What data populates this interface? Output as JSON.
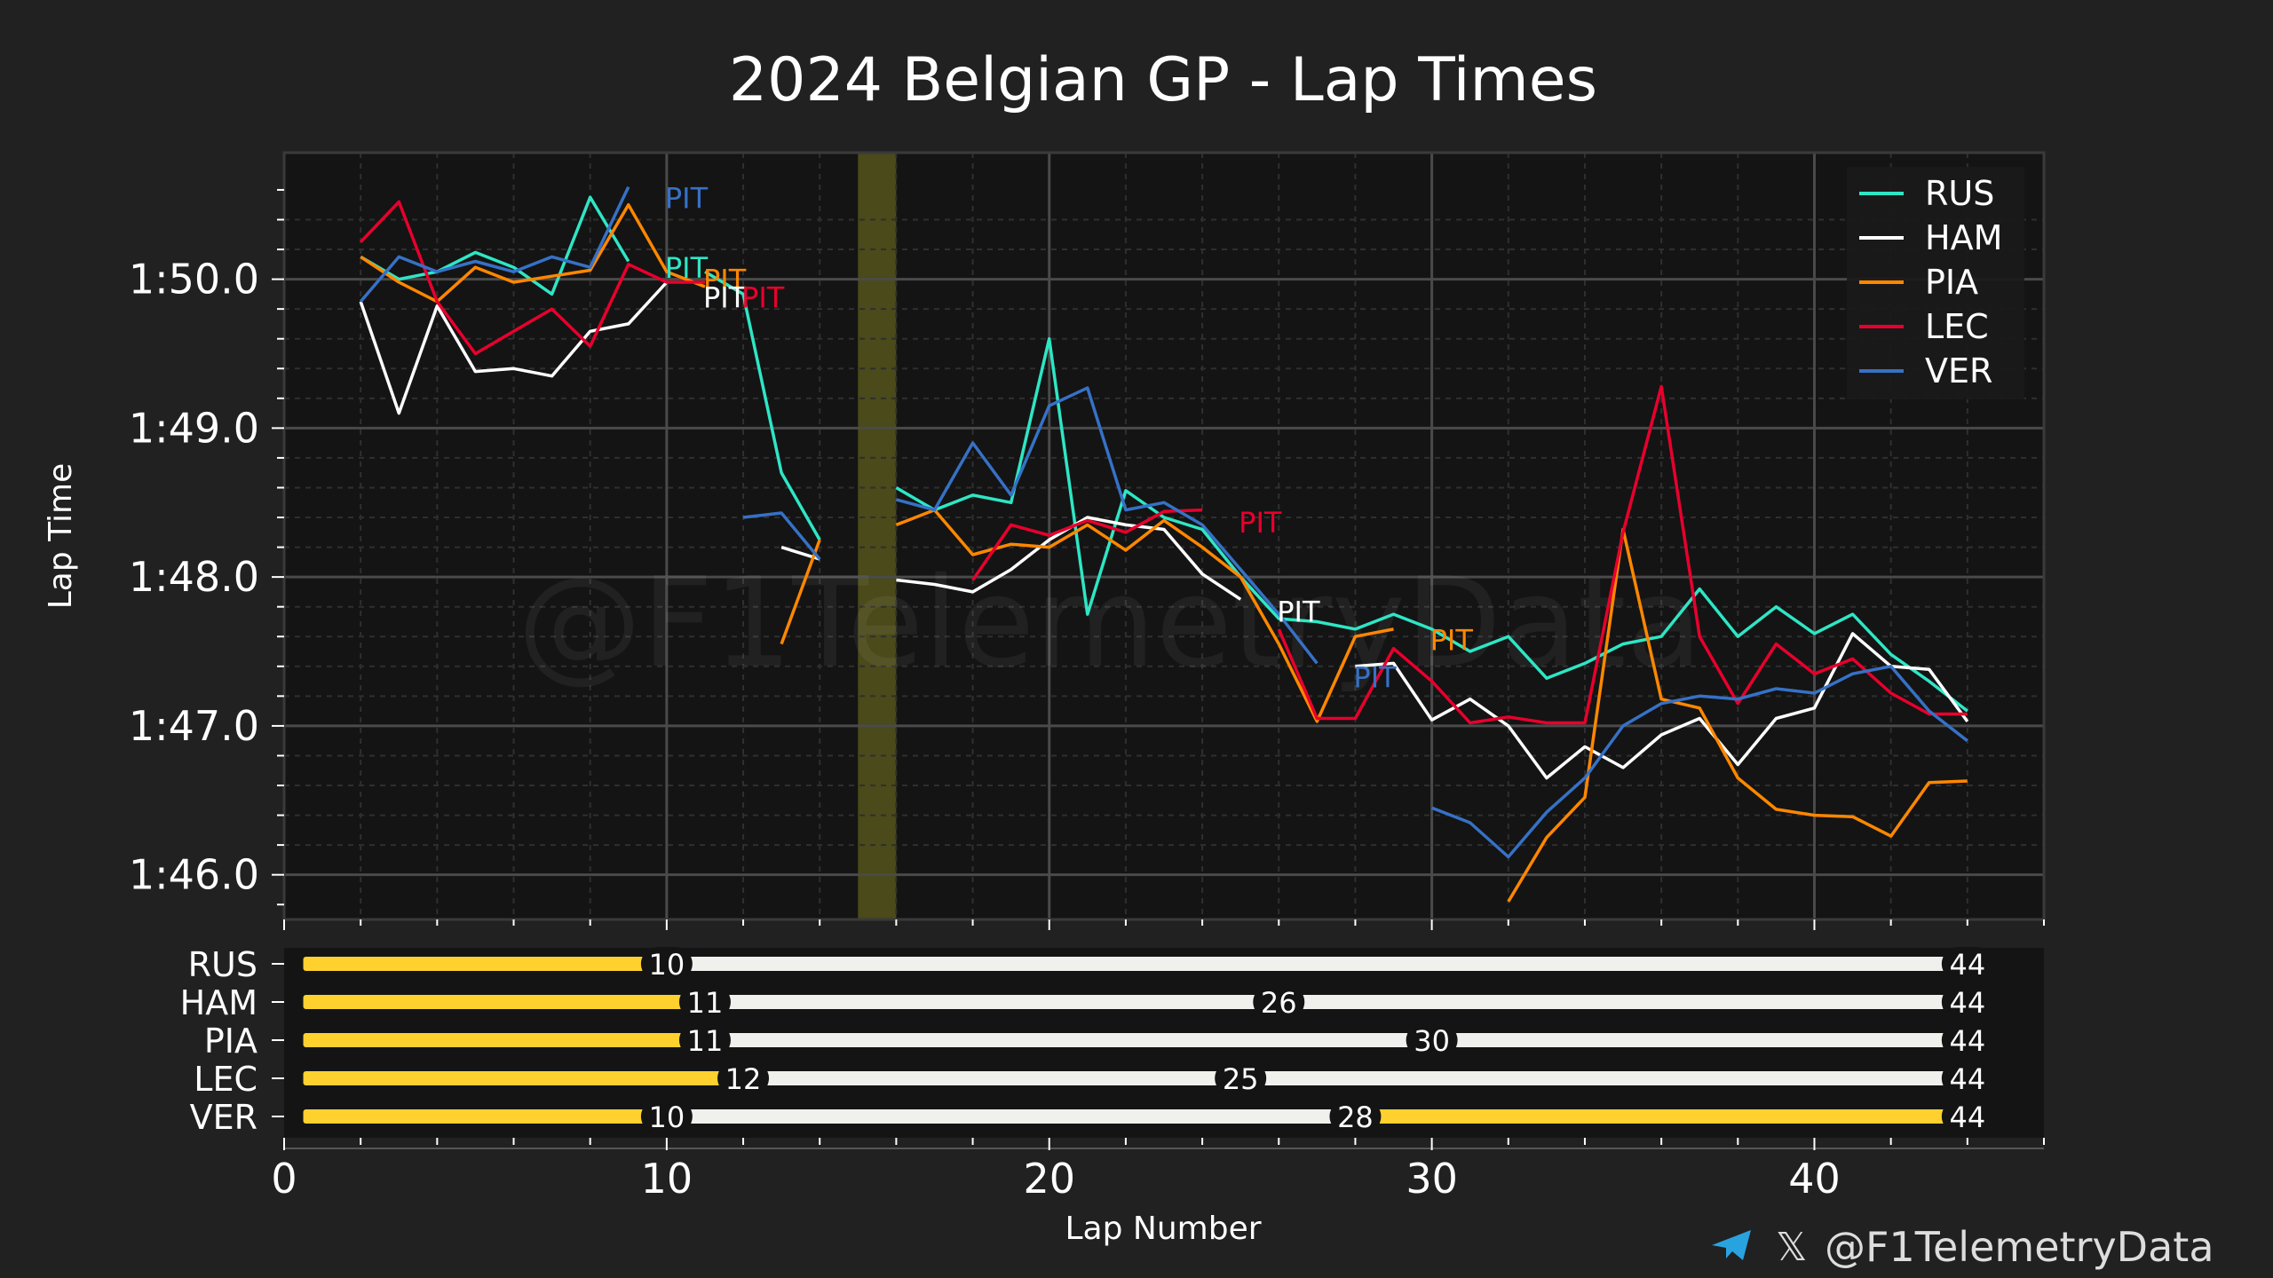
{
  "chart_data": {
    "type": "line",
    "title": "2024 Belgian GP - Lap Times",
    "xlabel": "Lap Number",
    "ylabel": "Lap Time",
    "xlim": [
      0,
      46
    ],
    "ylim_seconds": [
      105.7,
      110.85
    ],
    "x_ticks": [
      0,
      10,
      20,
      30,
      40
    ],
    "y_ticks": [
      {
        "value": 106,
        "label": "1:46.0"
      },
      {
        "value": 107,
        "label": "1:47.0"
      },
      {
        "value": 108,
        "label": "1:48.0"
      },
      {
        "value": 109,
        "label": "1:49.0"
      },
      {
        "value": 110,
        "label": "1:50.0"
      }
    ],
    "safety_car_laps": [
      15,
      16
    ],
    "grid": true,
    "legend_position": "top-right",
    "series": [
      {
        "name": "RUS",
        "color": "#2ee6c5",
        "points": [
          [
            2,
            110.15
          ],
          [
            3,
            110.0
          ],
          [
            4,
            110.05
          ],
          [
            5,
            110.18
          ],
          [
            6,
            110.08
          ],
          [
            7,
            109.9
          ],
          [
            8,
            110.55
          ],
          [
            9,
            110.12
          ],
          [
            null,
            null
          ],
          [
            11,
            110.05
          ],
          [
            12,
            109.9
          ],
          [
            13,
            108.7
          ],
          [
            14,
            108.25
          ],
          [
            null,
            null
          ],
          [
            16,
            108.6
          ],
          [
            17,
            108.45
          ],
          [
            18,
            108.55
          ],
          [
            19,
            108.5
          ],
          [
            20,
            109.6
          ],
          [
            21,
            107.75
          ],
          [
            22,
            108.58
          ],
          [
            23,
            108.4
          ],
          [
            24,
            108.32
          ],
          [
            25,
            108.0
          ],
          [
            26,
            107.72
          ],
          [
            27,
            107.7
          ],
          [
            28,
            107.65
          ],
          [
            29,
            107.75
          ],
          [
            30,
            107.65
          ],
          [
            31,
            107.5
          ],
          [
            32,
            107.6
          ],
          [
            33,
            107.32
          ],
          [
            34,
            107.42
          ],
          [
            35,
            107.55
          ],
          [
            36,
            107.6
          ],
          [
            37,
            107.92
          ],
          [
            38,
            107.6
          ],
          [
            39,
            107.8
          ],
          [
            40,
            107.62
          ],
          [
            41,
            107.75
          ],
          [
            42,
            107.48
          ],
          [
            43,
            107.3
          ],
          [
            44,
            107.1
          ]
        ]
      },
      {
        "name": "HAM",
        "color": "#ffffff",
        "points": [
          [
            2,
            109.85
          ],
          [
            3,
            109.1
          ],
          [
            4,
            109.82
          ],
          [
            5,
            109.38
          ],
          [
            6,
            109.4
          ],
          [
            7,
            109.35
          ],
          [
            8,
            109.65
          ],
          [
            9,
            109.7
          ],
          [
            10,
            109.98
          ],
          [
            null,
            null
          ],
          [
            13,
            108.2
          ],
          [
            14,
            108.12
          ],
          [
            null,
            null
          ],
          [
            16,
            107.98
          ],
          [
            17,
            107.95
          ],
          [
            18,
            107.9
          ],
          [
            19,
            108.05
          ],
          [
            20,
            108.25
          ],
          [
            21,
            108.4
          ],
          [
            22,
            108.35
          ],
          [
            23,
            108.32
          ],
          [
            24,
            108.02
          ],
          [
            25,
            107.85
          ],
          [
            null,
            null
          ],
          [
            28,
            107.4
          ],
          [
            29,
            107.42
          ],
          [
            30,
            107.04
          ],
          [
            31,
            107.18
          ],
          [
            32,
            107.0
          ],
          [
            33,
            106.65
          ],
          [
            34,
            106.86
          ],
          [
            35,
            106.72
          ],
          [
            36,
            106.94
          ],
          [
            37,
            107.05
          ],
          [
            38,
            106.74
          ],
          [
            39,
            107.05
          ],
          [
            40,
            107.12
          ],
          [
            41,
            107.62
          ],
          [
            42,
            107.4
          ],
          [
            43,
            107.38
          ],
          [
            44,
            107.03
          ]
        ]
      },
      {
        "name": "PIA",
        "color": "#ff8700",
        "points": [
          [
            2,
            110.15
          ],
          [
            3,
            109.98
          ],
          [
            4,
            109.85
          ],
          [
            5,
            110.08
          ],
          [
            6,
            109.98
          ],
          [
            7,
            110.02
          ],
          [
            8,
            110.06
          ],
          [
            9,
            110.5
          ],
          [
            10,
            110.05
          ],
          [
            11,
            109.95
          ],
          [
            null,
            null
          ],
          [
            13,
            107.55
          ],
          [
            14,
            108.25
          ],
          [
            null,
            null
          ],
          [
            16,
            108.35
          ],
          [
            17,
            108.45
          ],
          [
            18,
            108.15
          ],
          [
            19,
            108.22
          ],
          [
            20,
            108.2
          ],
          [
            21,
            108.35
          ],
          [
            22,
            108.18
          ],
          [
            23,
            108.38
          ],
          [
            24,
            108.2
          ],
          [
            25,
            108.0
          ],
          [
            26,
            107.55
          ],
          [
            27,
            107.03
          ],
          [
            28,
            107.6
          ],
          [
            29,
            107.65
          ],
          [
            null,
            null
          ],
          [
            32,
            105.82
          ],
          [
            33,
            106.25
          ],
          [
            34,
            106.52
          ],
          [
            35,
            108.32
          ],
          [
            36,
            107.18
          ],
          [
            37,
            107.12
          ],
          [
            38,
            106.65
          ],
          [
            39,
            106.44
          ],
          [
            40,
            106.4
          ],
          [
            41,
            106.39
          ],
          [
            42,
            106.26
          ],
          [
            43,
            106.62
          ],
          [
            44,
            106.63
          ]
        ]
      },
      {
        "name": "LEC",
        "color": "#e8002d",
        "points": [
          [
            2,
            110.25
          ],
          [
            3,
            110.52
          ],
          [
            4,
            109.85
          ],
          [
            5,
            109.5
          ],
          [
            6,
            109.65
          ],
          [
            7,
            109.8
          ],
          [
            8,
            109.55
          ],
          [
            9,
            110.1
          ],
          [
            10,
            109.98
          ],
          [
            11,
            109.98
          ],
          [
            null,
            null
          ],
          [
            18,
            107.98
          ],
          [
            19,
            108.35
          ],
          [
            20,
            108.28
          ],
          [
            21,
            108.38
          ],
          [
            22,
            108.3
          ],
          [
            23,
            108.44
          ],
          [
            24,
            108.45
          ],
          [
            null,
            null
          ],
          [
            26,
            107.65
          ],
          [
            27,
            107.05
          ],
          [
            28,
            107.05
          ],
          [
            29,
            107.52
          ],
          [
            30,
            107.3
          ],
          [
            31,
            107.02
          ],
          [
            32,
            107.06
          ],
          [
            33,
            107.02
          ],
          [
            34,
            107.02
          ],
          [
            35,
            108.3
          ],
          [
            36,
            109.28
          ],
          [
            37,
            107.6
          ],
          [
            38,
            107.15
          ],
          [
            39,
            107.55
          ],
          [
            40,
            107.35
          ],
          [
            41,
            107.45
          ],
          [
            42,
            107.22
          ],
          [
            43,
            107.08
          ],
          [
            44,
            107.08
          ]
        ]
      },
      {
        "name": "VER",
        "color": "#3671c6",
        "points": [
          [
            2,
            109.85
          ],
          [
            3,
            110.15
          ],
          [
            4,
            110.05
          ],
          [
            5,
            110.12
          ],
          [
            6,
            110.05
          ],
          [
            7,
            110.15
          ],
          [
            8,
            110.08
          ],
          [
            9,
            110.62
          ],
          [
            null,
            null
          ],
          [
            12,
            108.4
          ],
          [
            13,
            108.43
          ],
          [
            14,
            108.12
          ],
          [
            null,
            null
          ],
          [
            16,
            108.52
          ],
          [
            17,
            108.45
          ],
          [
            18,
            108.9
          ],
          [
            19,
            108.55
          ],
          [
            20,
            109.15
          ],
          [
            21,
            109.27
          ],
          [
            22,
            108.45
          ],
          [
            23,
            108.5
          ],
          [
            24,
            108.35
          ],
          [
            25,
            108.05
          ],
          [
            26,
            107.75
          ],
          [
            27,
            107.42
          ],
          [
            null,
            null
          ],
          [
            30,
            106.45
          ],
          [
            31,
            106.35
          ],
          [
            32,
            106.12
          ],
          [
            33,
            106.42
          ],
          [
            34,
            106.65
          ],
          [
            35,
            107.0
          ],
          [
            36,
            107.15
          ],
          [
            37,
            107.2
          ],
          [
            38,
            107.18
          ],
          [
            39,
            107.25
          ],
          [
            40,
            107.22
          ],
          [
            41,
            107.35
          ],
          [
            42,
            107.4
          ],
          [
            43,
            107.1
          ],
          [
            44,
            106.9
          ]
        ]
      }
    ],
    "pit_labels": [
      {
        "text": "PIT",
        "series": "VER",
        "lap": 10,
        "time": 110.55
      },
      {
        "text": "PIT",
        "series": "RUS",
        "lap": 10,
        "time": 110.08
      },
      {
        "text": "PIT",
        "series": "PIA",
        "lap": 11,
        "time": 110.0
      },
      {
        "text": "PIT",
        "series": "HAM",
        "lap": 11,
        "time": 109.88
      },
      {
        "text": "PIT",
        "series": "LEC",
        "lap": 12,
        "time": 109.88
      },
      {
        "text": "PIT",
        "series": "LEC",
        "lap": 25,
        "time": 108.37
      },
      {
        "text": "PIT",
        "series": "HAM",
        "lap": 26,
        "time": 107.77
      },
      {
        "text": "PIT",
        "series": "PIA",
        "lap": 30,
        "time": 107.58
      },
      {
        "text": "PIT",
        "series": "VER",
        "lap": 28,
        "time": 107.33
      }
    ],
    "tyre_strategy": [
      {
        "driver": "RUS",
        "stints": [
          {
            "start": 0.5,
            "end": 10,
            "compound": "medium"
          },
          {
            "start": 10,
            "end": 44,
            "compound": "hard"
          }
        ],
        "labels": [
          10,
          44
        ]
      },
      {
        "driver": "HAM",
        "stints": [
          {
            "start": 0.5,
            "end": 11,
            "compound": "medium"
          },
          {
            "start": 11,
            "end": 26,
            "compound": "hard"
          },
          {
            "start": 26,
            "end": 44,
            "compound": "hard"
          }
        ],
        "labels": [
          11,
          26,
          44
        ]
      },
      {
        "driver": "PIA",
        "stints": [
          {
            "start": 0.5,
            "end": 11,
            "compound": "medium"
          },
          {
            "start": 11,
            "end": 30,
            "compound": "hard"
          },
          {
            "start": 30,
            "end": 44,
            "compound": "hard"
          }
        ],
        "labels": [
          11,
          30,
          44
        ]
      },
      {
        "driver": "LEC",
        "stints": [
          {
            "start": 0.5,
            "end": 12,
            "compound": "medium"
          },
          {
            "start": 12,
            "end": 25,
            "compound": "hard"
          },
          {
            "start": 25,
            "end": 44,
            "compound": "hard"
          }
        ],
        "labels": [
          12,
          25,
          44
        ]
      },
      {
        "driver": "VER",
        "stints": [
          {
            "start": 0.5,
            "end": 10,
            "compound": "medium"
          },
          {
            "start": 10,
            "end": 28,
            "compound": "hard"
          },
          {
            "start": 28,
            "end": 44,
            "compound": "medium"
          }
        ],
        "labels": [
          10,
          28,
          44
        ]
      }
    ],
    "compound_colors": {
      "medium": "#ffd12e",
      "hard": "#f0f0ec"
    },
    "safety_car_color": "#4a4a1a"
  },
  "watermark": "@F1TelemetryData",
  "footer": {
    "handle": "@F1TelemetryData",
    "x_glyph": "𝕏"
  }
}
